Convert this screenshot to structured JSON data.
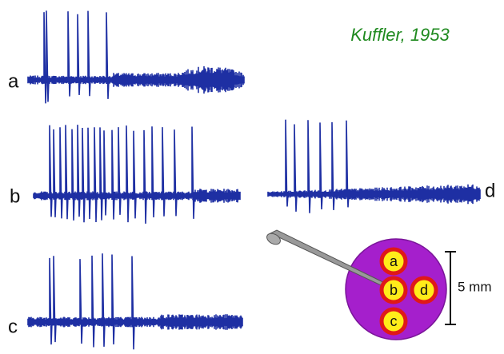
{
  "citation": "Kuffler, 1953",
  "traces": [
    {
      "label": "a"
    },
    {
      "label": "b"
    },
    {
      "label": "c"
    },
    {
      "label": "d"
    }
  ],
  "diagram": {
    "spots": [
      "a",
      "b",
      "c",
      "d"
    ],
    "scale": "5 mm"
  }
}
